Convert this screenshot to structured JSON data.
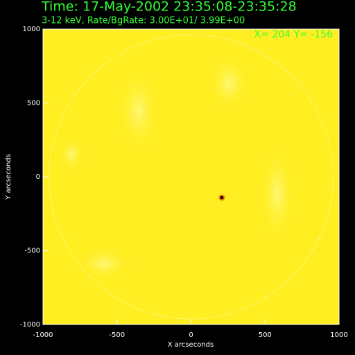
{
  "chart_data": {
    "type": "image",
    "title": "Time: 17-May-2002 23:35:08-23:35:28",
    "subtitle": "3-12 keV, Rate/BgRate:  3.00E+01/  3.99E+00",
    "annotation": "X=  204 Y= -156",
    "xlabel": "X arcseconds",
    "ylabel": "Y arcseconds",
    "xlim": [
      -1000,
      1000
    ],
    "ylim": [
      -1000,
      1000
    ],
    "xticks": [
      -1000,
      -500,
      0,
      500,
      1000
    ],
    "yticks": [
      -1000,
      -500,
      0,
      500,
      1000
    ],
    "points": {
      "x": [
        208
      ],
      "y": [
        -141
      ]
    },
    "color": "#ffee22",
    "grid": false
  }
}
